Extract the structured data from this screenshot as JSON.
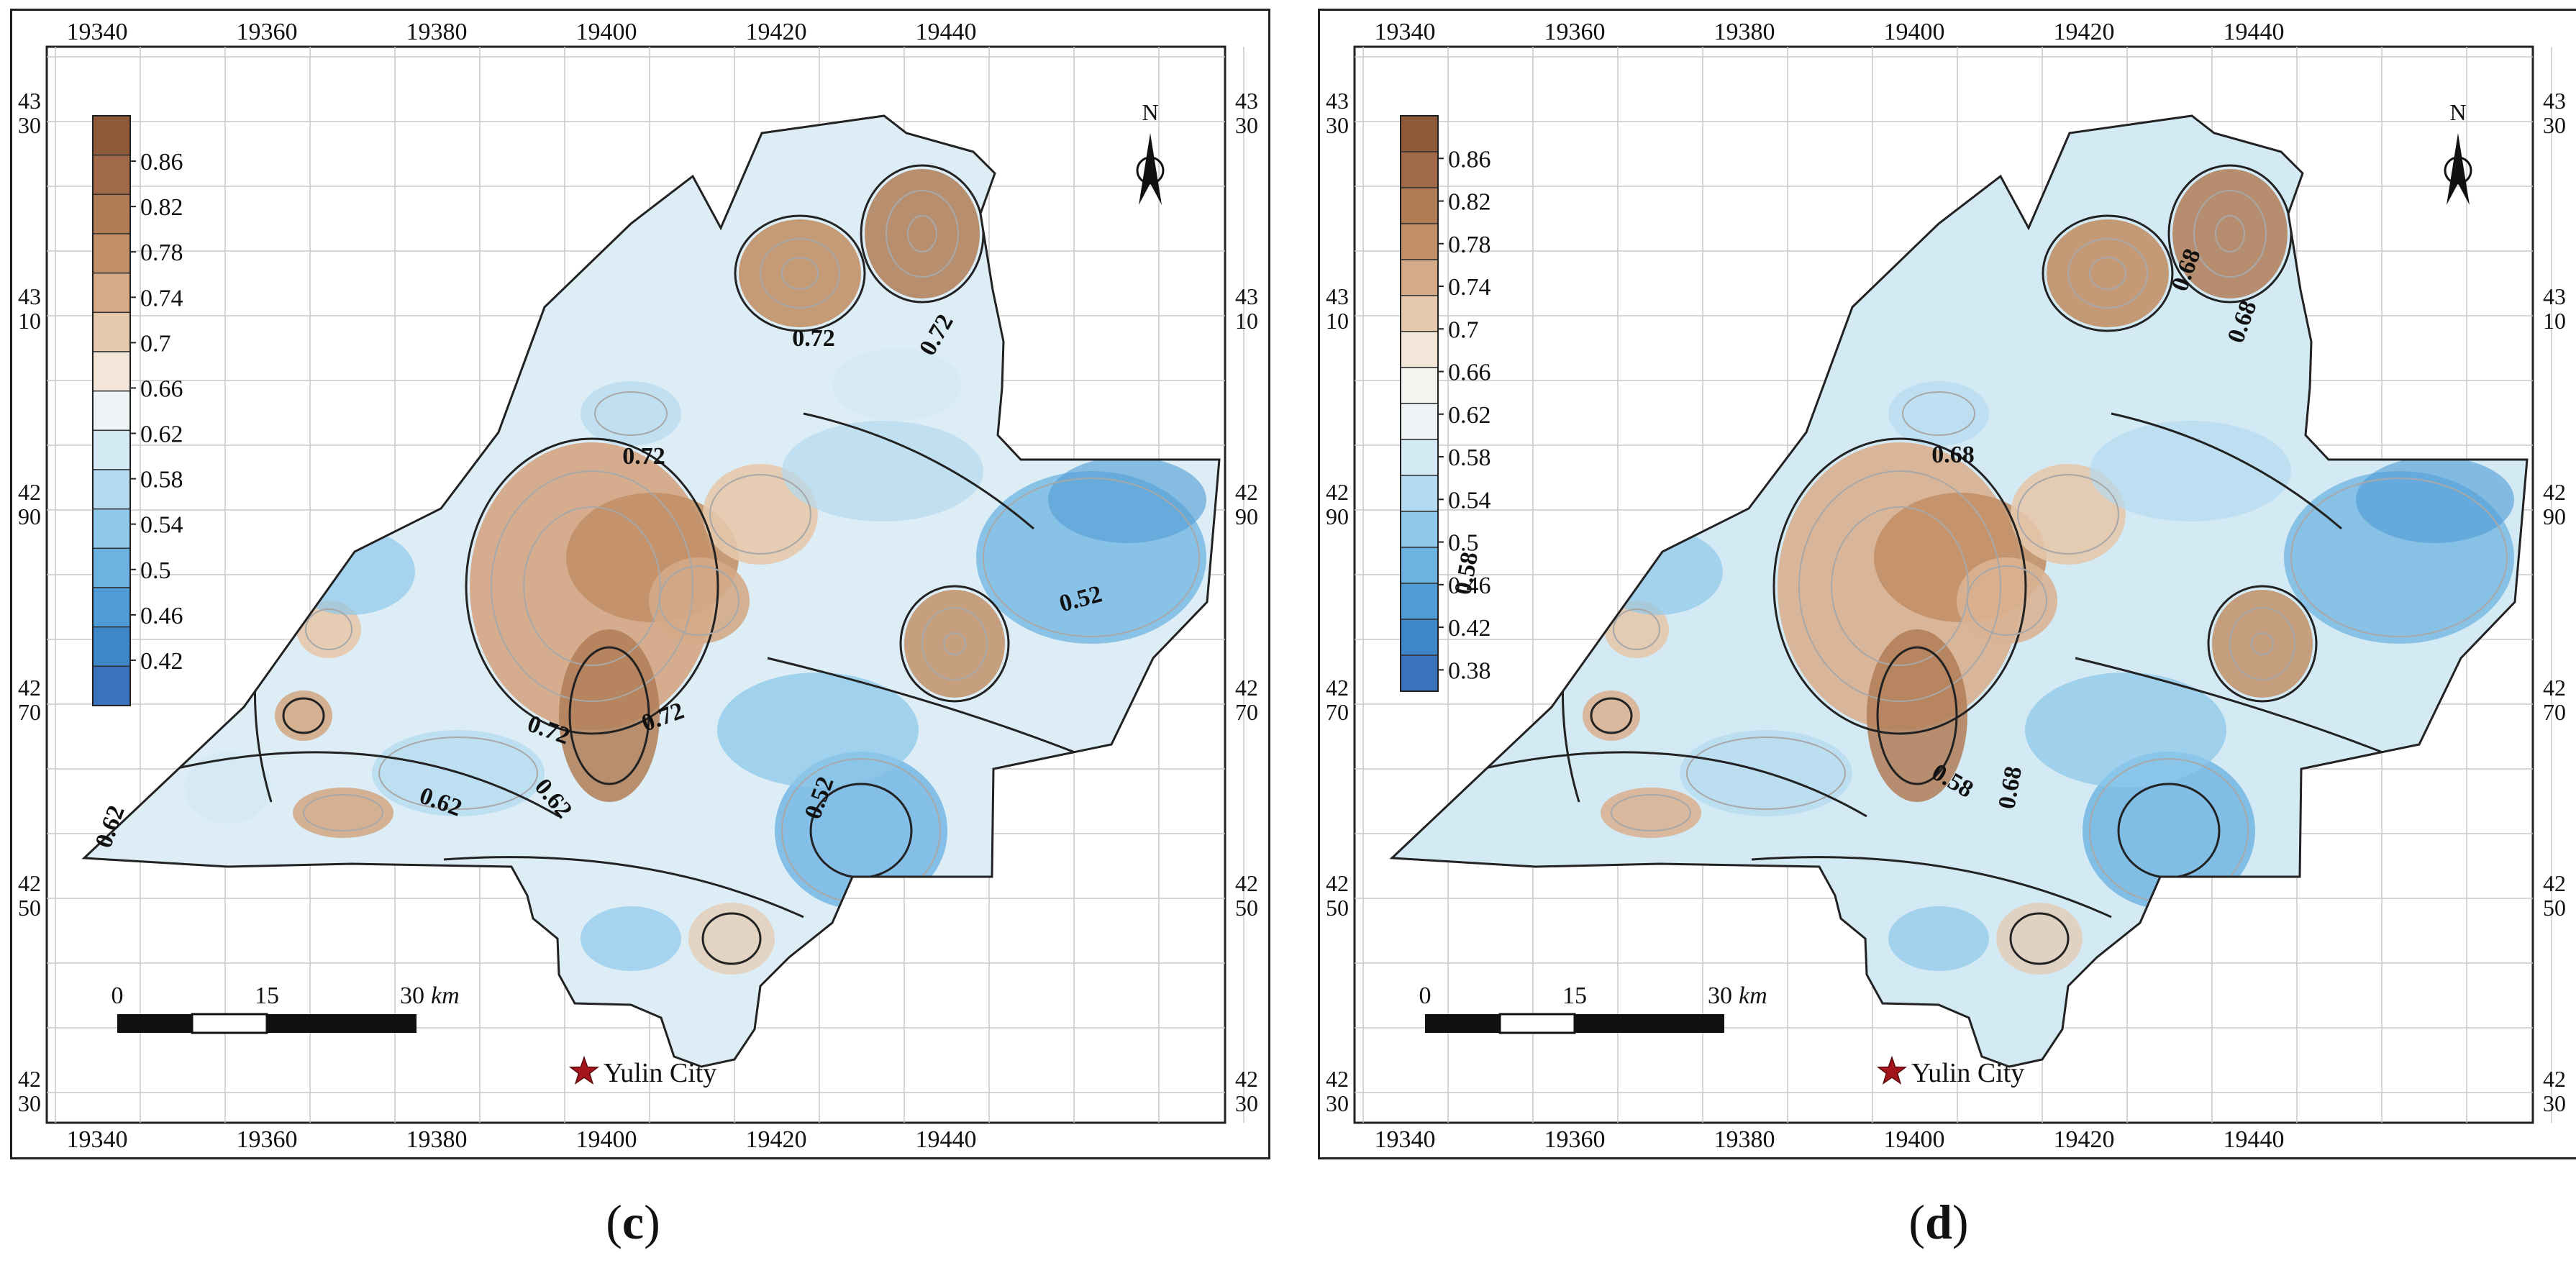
{
  "panels": [
    {
      "id": "c",
      "caption_open": "(",
      "caption_letter": "c",
      "caption_close": ")",
      "x_ticks_top": [
        "19340",
        "19360",
        "19380",
        "19400",
        "19420",
        "19440"
      ],
      "x_ticks_bottom": [
        "19340",
        "19360",
        "19380",
        "19400",
        "19420",
        "19440"
      ],
      "y_ticks": [
        [
          "43",
          "30"
        ],
        [
          "43",
          "10"
        ],
        [
          "42",
          "90"
        ],
        [
          "42",
          "70"
        ],
        [
          "42",
          "50"
        ],
        [
          "42",
          "30"
        ]
      ],
      "legend_values": [
        "0.86",
        "0.82",
        "0.78",
        "0.74",
        "0.7",
        "0.66",
        "0.62",
        "0.58",
        "0.54",
        "0.5",
        "0.46",
        "0.42"
      ],
      "legend_colors": [
        "#8f5a3a",
        "#a06a48",
        "#b07c56",
        "#c29068",
        "#d4aa88",
        "#e6c8ac",
        "#f3e6d8",
        "#eef3f6",
        "#d3e9f4",
        "#b3daf0",
        "#8ec8ea",
        "#6db3e2",
        "#4f9bd6",
        "#3f86c8",
        "#3a72bb"
      ],
      "contour_labels": [
        "0.72",
        "0.72",
        "0.72",
        "0.72",
        "0.72",
        "0.62",
        "0.62",
        "0.62",
        "0.52",
        "0.52"
      ],
      "north_label": "N",
      "scale_labels": [
        "0",
        "15",
        "30"
      ],
      "scale_unit": "km",
      "city_label": "Yulin City"
    },
    {
      "id": "d",
      "caption_open": "(",
      "caption_letter": "d",
      "caption_close": ")",
      "x_ticks_top": [
        "19340",
        "19360",
        "19380",
        "19400",
        "19420",
        "19440"
      ],
      "x_ticks_bottom": [
        "19340",
        "19360",
        "19380",
        "19400",
        "19420",
        "19440"
      ],
      "y_ticks": [
        [
          "43",
          "30"
        ],
        [
          "43",
          "10"
        ],
        [
          "42",
          "90"
        ],
        [
          "42",
          "70"
        ],
        [
          "42",
          "50"
        ],
        [
          "42",
          "30"
        ]
      ],
      "legend_values": [
        "0.86",
        "0.82",
        "0.78",
        "0.74",
        "0.7",
        "0.66",
        "0.62",
        "0.58",
        "0.54",
        "0.5",
        "0.46",
        "0.42",
        "0.38"
      ],
      "legend_colors": [
        "#8f5a3a",
        "#a06a48",
        "#b07c56",
        "#c29068",
        "#d4aa88",
        "#e6c8ac",
        "#f3e6d8",
        "#f3f3f0",
        "#eef3f6",
        "#d3e9f4",
        "#b3daf0",
        "#8ec8ea",
        "#6db3e2",
        "#4f9bd6",
        "#3f86c8",
        "#3a72bb"
      ],
      "contour_labels": [
        "0.68",
        "0.68",
        "0.68",
        "0.68",
        "0.58",
        "0.58"
      ],
      "north_label": "N",
      "scale_labels": [
        "0",
        "15",
        "30"
      ],
      "scale_unit": "km",
      "city_label": "Yulin City"
    }
  ]
}
